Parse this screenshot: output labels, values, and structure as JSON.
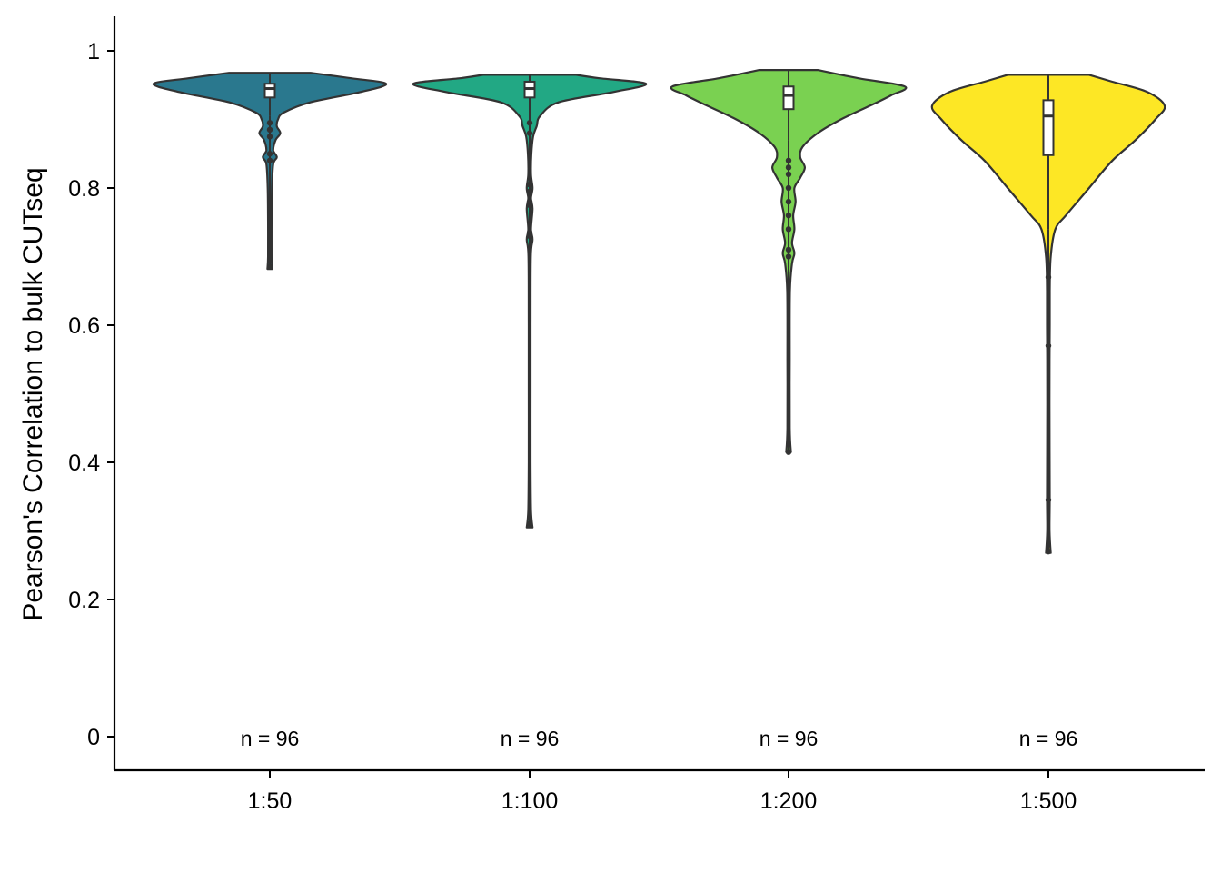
{
  "chart_data": {
    "type": "violin",
    "ylabel": "Pearson's Correlation to bulk CUTseq",
    "xlabel": "",
    "ylim": [
      -0.048,
      1.05
    ],
    "yticks": [
      0,
      0.2,
      0.4,
      0.6,
      0.8,
      1
    ],
    "ytick_labels": [
      "0",
      "0.2",
      "0.4",
      "0.6",
      "0.8",
      "1"
    ],
    "grid": false,
    "legend": "none",
    "categories": [
      "1:50",
      "1:100",
      "1:200",
      "1:500"
    ],
    "groups": [
      {
        "category": "1:50",
        "color": "#2a788e",
        "n_label": "n = 96",
        "box": {
          "q1": 0.932,
          "median": 0.945,
          "q3": 0.952,
          "whisker_low": 0.905,
          "whisker_high": 0.968
        },
        "outliers": [
          0.895,
          0.885,
          0.875,
          0.85,
          0.84,
          0.685
        ],
        "density": [
          [
            0.682,
            0.02
          ],
          [
            0.7,
            0.015
          ],
          [
            0.75,
            0.015
          ],
          [
            0.8,
            0.018
          ],
          [
            0.835,
            0.03
          ],
          [
            0.845,
            0.06
          ],
          [
            0.855,
            0.03
          ],
          [
            0.87,
            0.05
          ],
          [
            0.88,
            0.09
          ],
          [
            0.89,
            0.06
          ],
          [
            0.9,
            0.07
          ],
          [
            0.91,
            0.12
          ],
          [
            0.925,
            0.35
          ],
          [
            0.94,
            0.78
          ],
          [
            0.952,
            1.0
          ],
          [
            0.96,
            0.7
          ],
          [
            0.968,
            0.35
          ]
        ]
      },
      {
        "category": "1:100",
        "color": "#22a884",
        "n_label": "n = 96",
        "box": {
          "q1": 0.932,
          "median": 0.945,
          "q3": 0.955,
          "whisker_low": 0.9,
          "whisker_high": 0.965
        },
        "outliers": [
          0.895,
          0.88,
          0.805,
          0.795,
          0.78,
          0.775,
          0.735,
          0.73,
          0.31
        ],
        "density": [
          [
            0.305,
            0.025
          ],
          [
            0.33,
            0.012
          ],
          [
            0.4,
            0.008
          ],
          [
            0.5,
            0.008
          ],
          [
            0.6,
            0.008
          ],
          [
            0.7,
            0.01
          ],
          [
            0.725,
            0.025
          ],
          [
            0.74,
            0.012
          ],
          [
            0.77,
            0.025
          ],
          [
            0.785,
            0.012
          ],
          [
            0.8,
            0.025
          ],
          [
            0.82,
            0.012
          ],
          [
            0.85,
            0.015
          ],
          [
            0.875,
            0.03
          ],
          [
            0.89,
            0.06
          ],
          [
            0.905,
            0.09
          ],
          [
            0.925,
            0.25
          ],
          [
            0.94,
            0.72
          ],
          [
            0.952,
            1.0
          ],
          [
            0.96,
            0.6
          ],
          [
            0.965,
            0.4
          ]
        ]
      },
      {
        "category": "1:200",
        "color": "#7ad151",
        "n_label": "n = 96",
        "box": {
          "q1": 0.915,
          "median": 0.935,
          "q3": 0.948,
          "whisker_low": 0.87,
          "whisker_high": 0.972
        },
        "outliers": [
          0.84,
          0.83,
          0.82,
          0.8,
          0.78,
          0.76,
          0.74,
          0.71,
          0.7,
          0.415
        ],
        "density": [
          [
            0.415,
            0.02
          ],
          [
            0.45,
            0.01
          ],
          [
            0.55,
            0.01
          ],
          [
            0.65,
            0.012
          ],
          [
            0.69,
            0.03
          ],
          [
            0.705,
            0.05
          ],
          [
            0.72,
            0.03
          ],
          [
            0.74,
            0.05
          ],
          [
            0.76,
            0.04
          ],
          [
            0.78,
            0.06
          ],
          [
            0.8,
            0.05
          ],
          [
            0.815,
            0.1
          ],
          [
            0.83,
            0.14
          ],
          [
            0.845,
            0.1
          ],
          [
            0.86,
            0.12
          ],
          [
            0.88,
            0.25
          ],
          [
            0.9,
            0.45
          ],
          [
            0.92,
            0.7
          ],
          [
            0.935,
            0.88
          ],
          [
            0.948,
            1.0
          ],
          [
            0.96,
            0.6
          ],
          [
            0.972,
            0.25
          ]
        ]
      },
      {
        "category": "1:500",
        "color": "#fde725",
        "n_label": "n = 96",
        "box": {
          "q1": 0.848,
          "median": 0.905,
          "q3": 0.928,
          "whisker_low": 0.74,
          "whisker_high": 0.965
        },
        "outliers": [
          0.67,
          0.57,
          0.345,
          0.27
        ],
        "density": [
          [
            0.268,
            0.02
          ],
          [
            0.3,
            0.01
          ],
          [
            0.35,
            0.012
          ],
          [
            0.45,
            0.01
          ],
          [
            0.55,
            0.01
          ],
          [
            0.6,
            0.012
          ],
          [
            0.65,
            0.012
          ],
          [
            0.7,
            0.02
          ],
          [
            0.74,
            0.06
          ],
          [
            0.76,
            0.15
          ],
          [
            0.8,
            0.35
          ],
          [
            0.84,
            0.55
          ],
          [
            0.87,
            0.75
          ],
          [
            0.9,
            0.92
          ],
          [
            0.92,
            1.0
          ],
          [
            0.94,
            0.85
          ],
          [
            0.955,
            0.55
          ],
          [
            0.965,
            0.35
          ]
        ]
      }
    ]
  }
}
